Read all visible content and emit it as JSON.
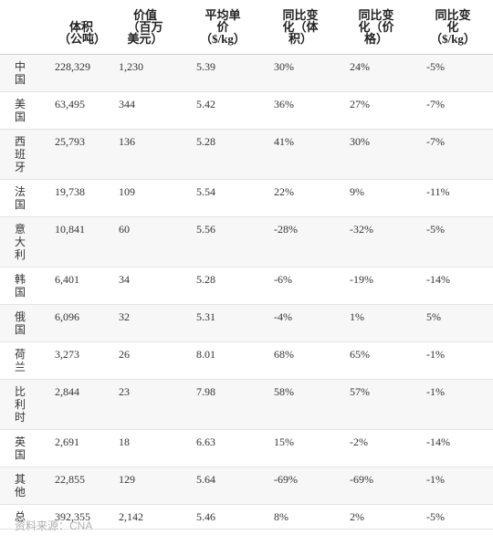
{
  "table": {
    "headers": [
      "体积（公吨）",
      "价值（百万美元）",
      "平均单价（$/kg）",
      "同比变化（体积）",
      "同比变化（价格）",
      "同比变化（$/kg）"
    ],
    "rows": [
      [
        "中国",
        "228,329",
        "1,230",
        "5.39",
        "30%",
        "24%",
        "-5%"
      ],
      [
        "美国",
        "63,495",
        "344",
        "5.42",
        "36%",
        "27%",
        "-7%"
      ],
      [
        "西班牙",
        "25,793",
        "136",
        "5.28",
        "41%",
        "30%",
        "-7%"
      ],
      [
        "法国",
        "19,738",
        "109",
        "5.54",
        "22%",
        "9%",
        "-11%"
      ],
      [
        "意大利",
        "10,841",
        "60",
        "5.56",
        "-28%",
        "-32%",
        "-5%"
      ],
      [
        "韩国",
        "6,401",
        "34",
        "5.28",
        "-6%",
        "-19%",
        "-14%"
      ],
      [
        "俄国",
        "6,096",
        "32",
        "5.31",
        "-4%",
        "1%",
        "5%"
      ],
      [
        "荷兰",
        "3,273",
        "26",
        "8.01",
        "68%",
        "65%",
        "-1%"
      ],
      [
        "比利时",
        "2,844",
        "23",
        "7.98",
        "58%",
        "57%",
        "-1%"
      ],
      [
        "英国",
        "2,691",
        "18",
        "6.63",
        "15%",
        "-2%",
        "-14%"
      ],
      [
        "其他",
        "22,855",
        "129",
        "5.64",
        "-69%",
        "-69%",
        "-1%"
      ],
      [
        "总",
        "392,355",
        "2,142",
        "5.46",
        "8%",
        "2%",
        "-5%"
      ]
    ]
  },
  "source": "资料来源：CNA"
}
